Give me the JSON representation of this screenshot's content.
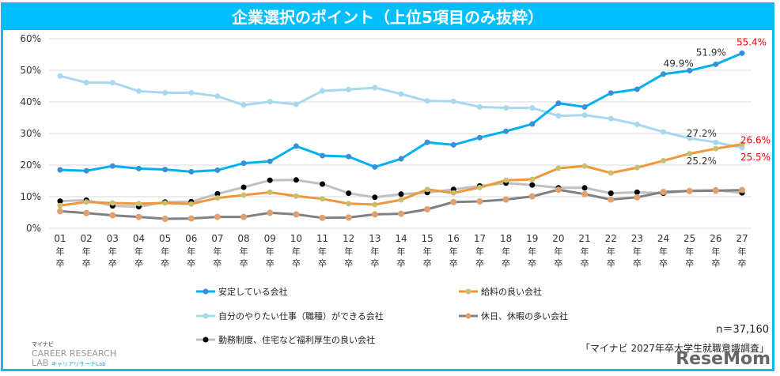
{
  "title": "企業選択のポイント（上位5項目のみ抜粋）",
  "chart_data": {
    "type": "line",
    "title": "企業選択のポイント（上位5項目のみ抜粋）",
    "categories": [
      "01",
      "02",
      "03",
      "04",
      "05",
      "06",
      "07",
      "08",
      "09",
      "10",
      "11",
      "12",
      "13",
      "14",
      "15",
      "16",
      "17",
      "18",
      "19",
      "20",
      "21",
      "22",
      "23",
      "24",
      "25",
      "26",
      "27"
    ],
    "category_suffix": "年卒",
    "ylim": [
      0,
      60
    ],
    "yticks": [
      "0%",
      "10%",
      "20%",
      "30%",
      "40%",
      "50%",
      "60%"
    ],
    "grid": true,
    "legend_position": "bottom",
    "series": [
      {
        "name": "安定している会社",
        "color": "#00b0f0",
        "marker": "#3a8fd8",
        "values": [
          18.5,
          18.2,
          19.7,
          18.9,
          18.6,
          17.9,
          18.4,
          20.6,
          21.2,
          26.0,
          23.0,
          22.7,
          19.4,
          22.0,
          27.2,
          26.4,
          28.7,
          30.7,
          33.0,
          39.6,
          38.4,
          42.8,
          44.0,
          48.8,
          49.9,
          51.9,
          55.4
        ]
      },
      {
        "name": "給料の良い会社",
        "color": "#f0963c",
        "marker": "#c8c070",
        "values": [
          7.2,
          8.3,
          8.0,
          7.8,
          8.0,
          7.7,
          9.6,
          10.5,
          11.4,
          10.2,
          9.3,
          7.8,
          7.5,
          9.0,
          12.3,
          11.2,
          12.9,
          15.2,
          15.5,
          19.0,
          19.7,
          17.5,
          19.2,
          21.4,
          23.6,
          25.2,
          26.6
        ]
      },
      {
        "name": "自分のやりたい仕事（職種）ができる会社",
        "color": "#a8d8ee",
        "marker": "#a8d8ee",
        "values": [
          48.2,
          46.1,
          46.1,
          43.4,
          42.9,
          42.9,
          41.8,
          39.0,
          40.1,
          39.2,
          43.5,
          43.9,
          44.5,
          42.5,
          40.3,
          40.2,
          38.4,
          38.1,
          38.1,
          35.6,
          35.8,
          34.7,
          32.9,
          30.5,
          28.5,
          27.2,
          25.5
        ]
      },
      {
        "name": "休日、休暇の多い会社",
        "color": "#808080",
        "marker": "#e0a070",
        "values": [
          5.4,
          4.8,
          4.1,
          3.6,
          3.0,
          3.1,
          3.6,
          3.6,
          4.9,
          4.4,
          3.3,
          3.4,
          4.4,
          4.6,
          6.0,
          8.3,
          8.5,
          9.1,
          10.1,
          12.2,
          10.8,
          9.1,
          9.8,
          11.5,
          11.8,
          11.9,
          12.1
        ]
      },
      {
        "name": "勤務制度、住宅など福利厚生の良い会社",
        "color": "#c0c0c0",
        "marker": "#000000",
        "values": [
          8.6,
          8.9,
          7.1,
          6.8,
          8.3,
          8.4,
          10.9,
          13.0,
          15.2,
          15.3,
          14.0,
          11.1,
          9.8,
          10.8,
          11.3,
          12.3,
          13.4,
          14.3,
          13.7,
          12.8,
          12.8,
          11.1,
          11.4,
          11.1,
          11.9,
          12.1,
          11.2
        ]
      }
    ],
    "annotations": [
      {
        "series": 0,
        "category": "25",
        "text": "49.9%",
        "color": "#333333"
      },
      {
        "series": 0,
        "category": "26",
        "text": "51.9%",
        "color": "#333333"
      },
      {
        "series": 0,
        "category": "27",
        "text": "55.4%",
        "color": "#ff0000"
      },
      {
        "series": 2,
        "category": "26",
        "text": "27.2%",
        "color": "#333333"
      },
      {
        "series": 1,
        "category": "26",
        "text": "25.2%",
        "color": "#333333"
      },
      {
        "series": 1,
        "category": "27",
        "text": "26.6%",
        "color": "#ff0000"
      },
      {
        "series": 2,
        "category": "27",
        "text": "25.5%",
        "color": "#ff0000"
      }
    ]
  },
  "sample_size": "n＝37,160",
  "source": "「マイナビ 2027年卒大学生就職意識調査」",
  "logo": {
    "brand": "マイナビ",
    "line1": "CAREER RESEARCH",
    "line2": "LAB",
    "sub": "キャリアリサーチLab"
  },
  "watermark": "ReseMom"
}
